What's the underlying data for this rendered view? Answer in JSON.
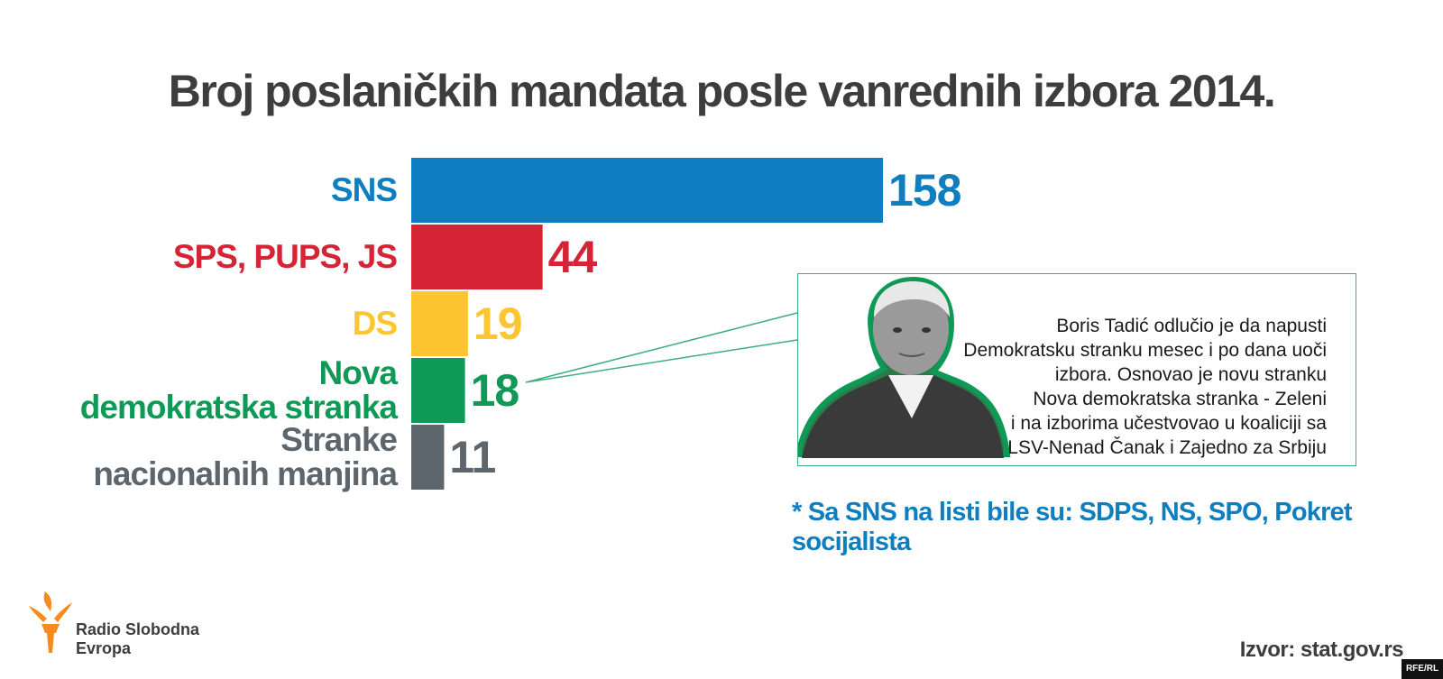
{
  "chart_data": {
    "type": "bar",
    "orientation": "horizontal",
    "title": "Broj poslaničkih mandata posle vanrednih izbora 2014.",
    "categories": [
      "SNS",
      "SPS, PUPS, JS",
      "DS",
      "Nova demokratska stranka",
      "Stranke nacionalnih manjina"
    ],
    "label_lines": [
      [
        "SNS"
      ],
      [
        "SPS, PUPS, JS"
      ],
      [
        "DS"
      ],
      [
        "Nova",
        "demokratska stranka"
      ],
      [
        "Stranke",
        "nacionalnih manjina"
      ]
    ],
    "values": [
      158,
      44,
      19,
      18,
      11
    ],
    "colors": [
      "#0d7fc1",
      "#d42435",
      "#fdc52f",
      "#0e9a56",
      "#5d666d"
    ],
    "value_label_colors": [
      "#0d7fc1",
      "#d42435",
      "#fdc52f",
      "#0e9a56",
      "#5d666d"
    ],
    "grid": false,
    "legend": "none"
  },
  "callout": {
    "text_lines": [
      "Boris Tadić odlučio je da napusti",
      "Demokratsku stranku mesec i po dana uoči",
      "izbora. Osnovao je novu stranku",
      "Nova demokratska stranka - Zeleni",
      "i na izborima učestvovao u koaliciji sa",
      "LSV-Nenad Čanak i Zajedno za Srbiju"
    ],
    "border_color": "#3fae7f"
  },
  "footnote": "* Sa SNS na listi bile su: SDPS, NS, SPO, Pokret socijalista",
  "source": "Izvor: stat.gov.rs",
  "logo": {
    "name_line1": "Radio Slobodna",
    "name_line2": "Evropa",
    "color": "#f68b1f"
  },
  "corner_tag": "RFE/RL"
}
